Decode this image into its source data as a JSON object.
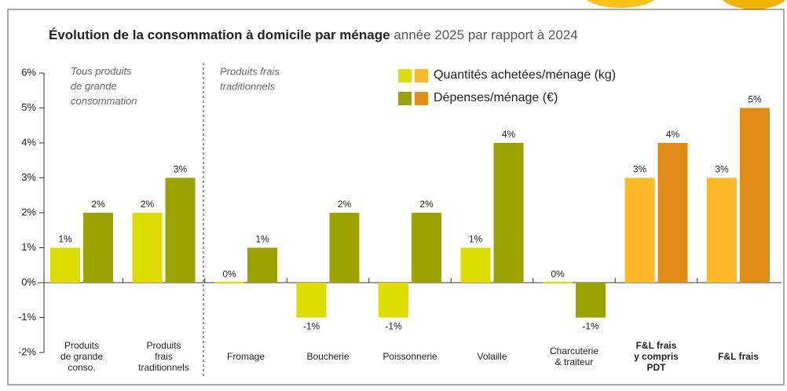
{
  "chart_data": {
    "type": "bar",
    "title": "Évolution de la consommation à domicile par ménage",
    "subtitle": "année 2025 par rapport à 2024",
    "annotations": [
      "Tous produits\nde grande\nconsommation",
      "Produits frais\ntraditionnels"
    ],
    "categories": [
      "Produits\nde grande\nconso.",
      "Produits\nfrais\ntraditionnels",
      "Fromage",
      "Boucherie",
      "Poissonnerie",
      "Volaille",
      "Charcuterie\n& traiteur",
      "F&L frais\ny compris\nPDT",
      "F&L frais"
    ],
    "category_label_bold": [
      false,
      false,
      false,
      false,
      false,
      false,
      false,
      true,
      true
    ],
    "series": [
      {
        "name": "Quantités achetées/ménage (kg)",
        "colors": [
          "#dedd00",
          "#dedd00",
          "#dedd00",
          "#dedd00",
          "#dedd00",
          "#dedd00",
          "#dedd00",
          "#fbb829",
          "#fbb829"
        ],
        "values": [
          1,
          2,
          0,
          -1,
          -1,
          1,
          0,
          3,
          3
        ],
        "value_labels": [
          "1%",
          "2%",
          "0%",
          "-1%",
          "-1%",
          "1%",
          "0%",
          "3%",
          "3%"
        ]
      },
      {
        "name": "Dépenses/ménage (€)",
        "colors": [
          "#9aa300",
          "#9aa300",
          "#9aa300",
          "#9aa300",
          "#9aa300",
          "#9aa300",
          "#9aa300",
          "#e08c16",
          "#e08c16"
        ],
        "values": [
          2,
          3,
          1,
          2,
          2,
          4,
          -1,
          4,
          5
        ],
        "value_labels": [
          "2%",
          "3%",
          "1%",
          "2%",
          "2%",
          "4%",
          "-1%",
          "4%",
          "5%"
        ]
      }
    ],
    "ylim": [
      -2,
      6
    ],
    "yticks": [
      {
        "value": -2,
        "label": "-2%"
      },
      {
        "value": -1,
        "label": "-1%"
      },
      {
        "value": 0,
        "label": "0%"
      },
      {
        "value": 1,
        "label": "1%"
      },
      {
        "value": 2,
        "label": "2%"
      },
      {
        "value": 3,
        "label": "3%"
      },
      {
        "value": 4,
        "label": "4%"
      },
      {
        "value": 5,
        "label": "5%"
      },
      {
        "value": 6,
        "label": "6%"
      }
    ],
    "grid": false
  }
}
